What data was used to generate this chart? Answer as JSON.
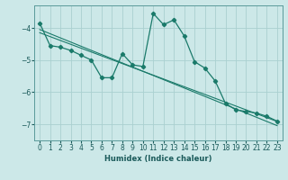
{
  "xlabel": "Humidex (Indice chaleur)",
  "bg_color": "#cce8e8",
  "line_color": "#1a7a6a",
  "grid_color": "#aad0d0",
  "x_values": [
    0,
    1,
    2,
    3,
    4,
    5,
    6,
    7,
    8,
    9,
    10,
    11,
    12,
    13,
    14,
    15,
    16,
    17,
    18,
    19,
    20,
    21,
    22,
    23
  ],
  "y_main": [
    -3.85,
    -4.55,
    -4.6,
    -4.7,
    -4.85,
    -5.0,
    -5.55,
    -5.55,
    -4.8,
    -5.15,
    -5.2,
    -3.55,
    -3.9,
    -3.75,
    -4.25,
    -5.05,
    -5.25,
    -5.65,
    -6.35,
    -6.55,
    -6.6,
    -6.65,
    -6.75,
    -6.9
  ],
  "y_trend1": [
    -4.05,
    -4.18,
    -4.31,
    -4.44,
    -4.57,
    -4.7,
    -4.83,
    -4.96,
    -5.09,
    -5.22,
    -5.35,
    -5.48,
    -5.61,
    -5.74,
    -5.87,
    -6.0,
    -6.13,
    -6.26,
    -6.39,
    -6.52,
    -6.65,
    -6.78,
    -6.91,
    -7.04
  ],
  "y_trend2": [
    -4.15,
    -4.27,
    -4.39,
    -4.51,
    -4.63,
    -4.75,
    -4.87,
    -4.99,
    -5.11,
    -5.23,
    -5.35,
    -5.47,
    -5.59,
    -5.71,
    -5.83,
    -5.95,
    -6.07,
    -6.19,
    -6.31,
    -6.43,
    -6.55,
    -6.67,
    -6.79,
    -6.91
  ],
  "ylim": [
    -7.5,
    -3.3
  ],
  "xlim": [
    -0.5,
    23.5
  ],
  "yticks": [
    -7,
    -6,
    -5,
    -4
  ],
  "xticks": [
    0,
    1,
    2,
    3,
    4,
    5,
    6,
    7,
    8,
    9,
    10,
    11,
    12,
    13,
    14,
    15,
    16,
    17,
    18,
    19,
    20,
    21,
    22,
    23
  ]
}
